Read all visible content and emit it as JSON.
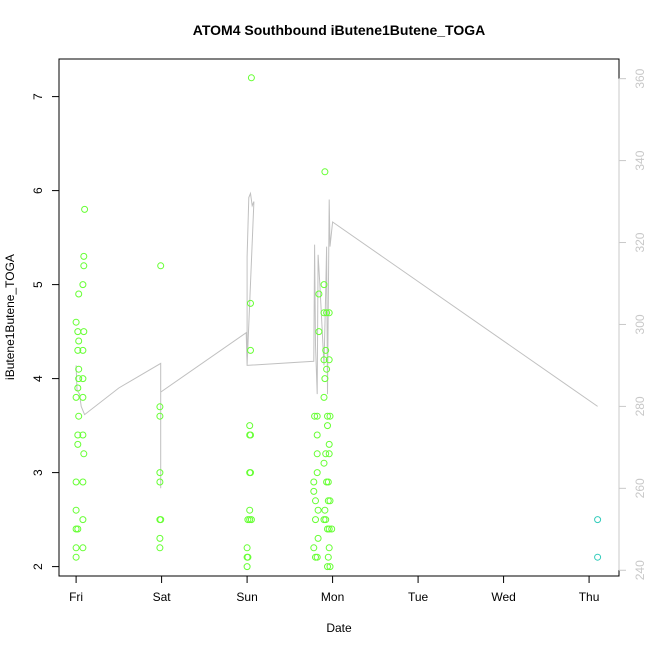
{
  "chart_data": {
    "type": "scatter",
    "title": "ATOM4 Southbound iButene1Butene_TOGA",
    "xlabel": "Date",
    "ylabel": "iButene1Butene_TOGA",
    "x_tick_labels": [
      "Fri",
      "Sat",
      "Sun",
      "Mon",
      "Tue",
      "Wed",
      "Thu"
    ],
    "y_ticks": [
      2,
      3,
      4,
      5,
      6,
      7
    ],
    "y_range": [
      1.9,
      7.4
    ],
    "y2_ticks": [
      240,
      260,
      280,
      300,
      320,
      340,
      360
    ],
    "y2_range": [
      238.6,
      364.8
    ],
    "x_range_days": [
      -0.2,
      6.35
    ],
    "grid": false,
    "legend": "none",
    "series": [
      {
        "point_color": "#66ff33",
        "points": [
          [
            0.0,
            2.1
          ],
          [
            0.0,
            2.2
          ],
          [
            0.0,
            2.4
          ],
          [
            0.02,
            2.4
          ],
          [
            0.0,
            2.6
          ],
          [
            0.0,
            2.9
          ],
          [
            0.02,
            3.3
          ],
          [
            0.02,
            3.4
          ],
          [
            0.03,
            3.6
          ],
          [
            0.0,
            3.8
          ],
          [
            0.02,
            3.9
          ],
          [
            0.03,
            4.0
          ],
          [
            0.03,
            4.1
          ],
          [
            0.02,
            4.3
          ],
          [
            0.03,
            4.4
          ],
          [
            0.02,
            4.5
          ],
          [
            0.0,
            4.6
          ],
          [
            0.03,
            4.9
          ],
          [
            0.08,
            2.2
          ],
          [
            0.08,
            2.5
          ],
          [
            0.08,
            2.9
          ],
          [
            0.09,
            3.2
          ],
          [
            0.08,
            3.4
          ],
          [
            0.08,
            3.8
          ],
          [
            0.08,
            4.0
          ],
          [
            0.08,
            4.3
          ],
          [
            0.09,
            4.5
          ],
          [
            0.08,
            5.0
          ],
          [
            0.09,
            5.2
          ],
          [
            0.09,
            5.3
          ],
          [
            0.1,
            5.8
          ],
          [
            0.98,
            2.2
          ],
          [
            0.98,
            2.3
          ],
          [
            0.98,
            2.5
          ],
          [
            0.99,
            2.5
          ],
          [
            0.98,
            2.9
          ],
          [
            0.98,
            3.0
          ],
          [
            0.98,
            3.6
          ],
          [
            0.98,
            3.7
          ],
          [
            0.99,
            5.2
          ],
          [
            2.0,
            2.0
          ],
          [
            2.0,
            2.1
          ],
          [
            2.01,
            2.1
          ],
          [
            2.0,
            2.2
          ],
          [
            2.01,
            2.5
          ],
          [
            2.03,
            2.5
          ],
          [
            2.03,
            2.6
          ],
          [
            2.05,
            2.5
          ],
          [
            2.03,
            3.0
          ],
          [
            2.04,
            3.0
          ],
          [
            2.03,
            3.4
          ],
          [
            2.04,
            3.4
          ],
          [
            2.03,
            3.5
          ],
          [
            2.04,
            4.3
          ],
          [
            2.04,
            4.8
          ],
          [
            2.05,
            7.2
          ],
          [
            2.78,
            2.2
          ],
          [
            2.8,
            2.1
          ],
          [
            2.82,
            2.1
          ],
          [
            2.83,
            2.3
          ],
          [
            2.8,
            2.5
          ],
          [
            2.83,
            2.6
          ],
          [
            2.8,
            2.7
          ],
          [
            2.78,
            2.8
          ],
          [
            2.78,
            2.9
          ],
          [
            2.82,
            3.0
          ],
          [
            2.82,
            3.2
          ],
          [
            2.82,
            3.4
          ],
          [
            2.79,
            3.6
          ],
          [
            2.82,
            3.6
          ],
          [
            2.84,
            4.5
          ],
          [
            2.84,
            4.9
          ],
          [
            2.9,
            2.5
          ],
          [
            2.92,
            2.5
          ],
          [
            2.91,
            2.6
          ],
          [
            2.93,
            2.9
          ],
          [
            2.9,
            3.1
          ],
          [
            2.92,
            3.2
          ],
          [
            2.9,
            3.8
          ],
          [
            2.91,
            4.0
          ],
          [
            2.93,
            4.1
          ],
          [
            2.9,
            4.2
          ],
          [
            2.92,
            4.3
          ],
          [
            2.9,
            4.7
          ],
          [
            2.93,
            4.7
          ],
          [
            2.9,
            5.0
          ],
          [
            2.91,
            6.2
          ],
          [
            2.94,
            2.0
          ],
          [
            2.95,
            2.1
          ],
          [
            2.96,
            2.2
          ],
          [
            2.94,
            2.4
          ],
          [
            2.96,
            2.4
          ],
          [
            2.95,
            2.7
          ],
          [
            2.97,
            2.7
          ],
          [
            2.95,
            2.9
          ],
          [
            2.96,
            3.2
          ],
          [
            2.96,
            3.3
          ],
          [
            2.94,
            3.5
          ],
          [
            2.94,
            3.6
          ],
          [
            2.97,
            3.6
          ],
          [
            2.96,
            4.2
          ],
          [
            2.96,
            4.7
          ],
          [
            2.97,
            2.0
          ],
          [
            2.99,
            2.4
          ]
        ]
      },
      {
        "point_color": "#33ccbb",
        "points": [
          [
            6.1,
            2.1
          ],
          [
            6.1,
            2.5
          ]
        ]
      },
      {
        "axis": "right",
        "line_color": "#c0c0c0",
        "line": [
          [
            0.0,
            290.0
          ],
          [
            0.01,
            284.0
          ],
          [
            0.04,
            283.0
          ],
          [
            0.06,
            280.0
          ],
          [
            0.1,
            278.0
          ],
          [
            0.5,
            284.5
          ],
          [
            0.99,
            290.5
          ],
          [
            0.99,
            273.5
          ],
          [
            0.99,
            260.0
          ],
          [
            0.99,
            262.0
          ],
          [
            0.99,
            266.0
          ],
          [
            0.99,
            283.5
          ],
          [
            1.99,
            298.0
          ],
          [
            2.0,
            290.0
          ],
          [
            2.0,
            295.0
          ],
          [
            2.0,
            300.0
          ],
          [
            2.0,
            310.0
          ],
          [
            2.0,
            316.5
          ],
          [
            2.02,
            331.0
          ],
          [
            2.04,
            332.0
          ],
          [
            2.06,
            329.0
          ],
          [
            2.08,
            330.0
          ],
          [
            2.0,
            290.0
          ],
          [
            2.78,
            291.0
          ],
          [
            2.79,
            319.5
          ],
          [
            2.8,
            295.0
          ],
          [
            2.82,
            283.0
          ],
          [
            2.83,
            317.0
          ],
          [
            2.85,
            310.0
          ],
          [
            2.9,
            290.0
          ],
          [
            2.92,
            308.0
          ],
          [
            2.93,
            319.0
          ],
          [
            2.94,
            283.0
          ],
          [
            2.96,
            330.5
          ],
          [
            2.97,
            319.0
          ],
          [
            3.0,
            325.0
          ],
          [
            6.1,
            280.0
          ]
        ]
      }
    ]
  }
}
